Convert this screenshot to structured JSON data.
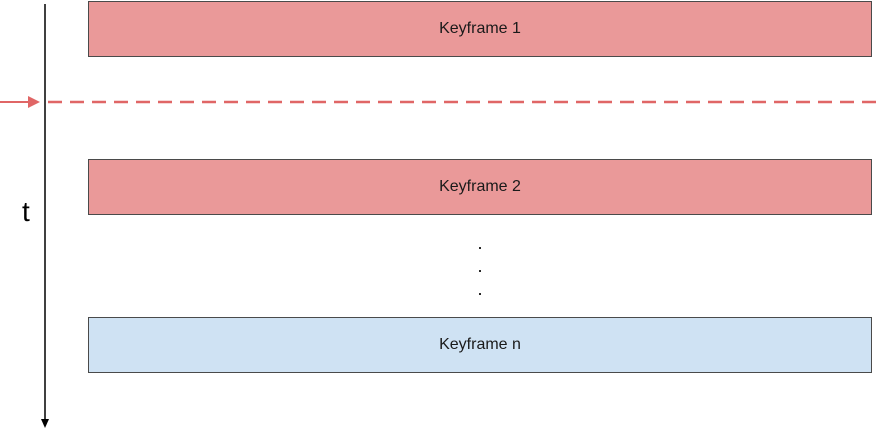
{
  "diagram": {
    "time_axis_label": "t",
    "keyframes": [
      {
        "label": "Keyframe 1",
        "fill": "#ea9999"
      },
      {
        "label": "Keyframe 2",
        "fill": "#ea9999"
      },
      {
        "label": "Keyframe n",
        "fill": "#cfe2f3"
      }
    ],
    "ellipsis": [
      ".",
      ".",
      "."
    ],
    "colors": {
      "axis": "#000000",
      "marker": "#e06666",
      "border": "#4a4a4a"
    }
  }
}
